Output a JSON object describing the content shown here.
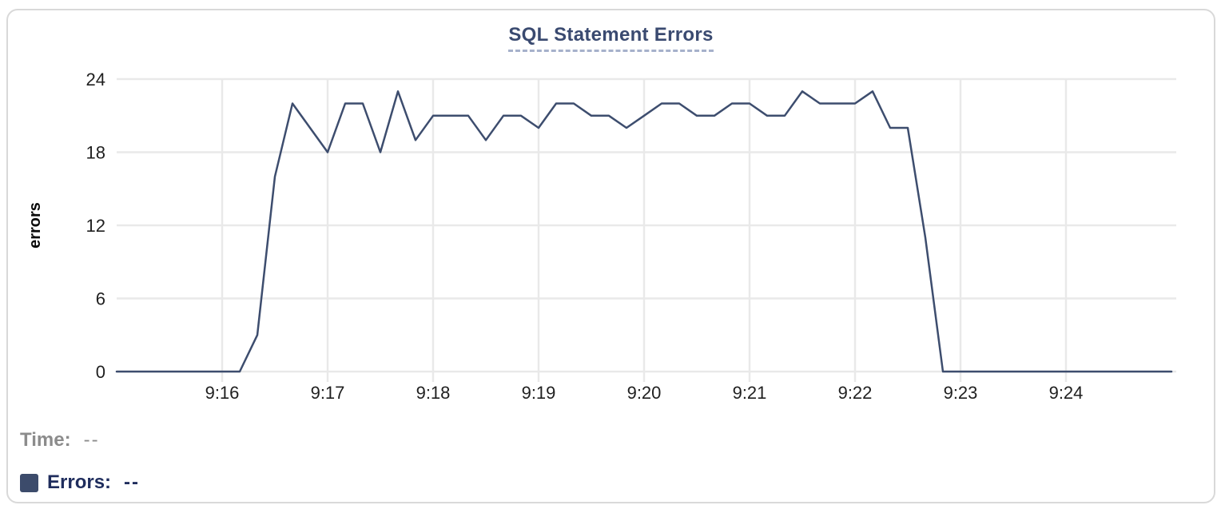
{
  "chart_data": {
    "type": "line",
    "title": "SQL Statement Errors",
    "xlabel": "",
    "ylabel": "errors",
    "x_ticks": [
      "9:16",
      "9:17",
      "9:18",
      "9:19",
      "9:20",
      "9:21",
      "9:22",
      "9:23",
      "9:24"
    ],
    "y_ticks": [
      0,
      6,
      12,
      18,
      24
    ],
    "ylim": [
      0,
      24
    ],
    "x_range": [
      "9:15:00",
      "9:25:00"
    ],
    "grid": true,
    "legend_position": "bottom-left",
    "series": [
      {
        "name": "Errors",
        "color": "#3d4d6e",
        "points": [
          [
            "9:15:00",
            0
          ],
          [
            "9:15:10",
            0
          ],
          [
            "9:15:20",
            0
          ],
          [
            "9:15:30",
            0
          ],
          [
            "9:15:40",
            0
          ],
          [
            "9:15:50",
            0
          ],
          [
            "9:16:00",
            0
          ],
          [
            "9:16:10",
            0
          ],
          [
            "9:16:20",
            3
          ],
          [
            "9:16:30",
            16
          ],
          [
            "9:16:40",
            22
          ],
          [
            "9:16:50",
            20
          ],
          [
            "9:17:00",
            18
          ],
          [
            "9:17:10",
            22
          ],
          [
            "9:17:20",
            22
          ],
          [
            "9:17:30",
            18
          ],
          [
            "9:17:40",
            23
          ],
          [
            "9:17:50",
            19
          ],
          [
            "9:18:00",
            21
          ],
          [
            "9:18:10",
            21
          ],
          [
            "9:18:20",
            21
          ],
          [
            "9:18:30",
            19
          ],
          [
            "9:18:40",
            21
          ],
          [
            "9:18:50",
            21
          ],
          [
            "9:19:00",
            20
          ],
          [
            "9:19:10",
            22
          ],
          [
            "9:19:20",
            22
          ],
          [
            "9:19:30",
            21
          ],
          [
            "9:19:40",
            21
          ],
          [
            "9:19:50",
            20
          ],
          [
            "9:20:00",
            21
          ],
          [
            "9:20:10",
            22
          ],
          [
            "9:20:20",
            22
          ],
          [
            "9:20:30",
            21
          ],
          [
            "9:20:40",
            21
          ],
          [
            "9:20:50",
            22
          ],
          [
            "9:21:00",
            22
          ],
          [
            "9:21:10",
            21
          ],
          [
            "9:21:20",
            21
          ],
          [
            "9:21:30",
            23
          ],
          [
            "9:21:40",
            22
          ],
          [
            "9:21:50",
            22
          ],
          [
            "9:22:00",
            22
          ],
          [
            "9:22:10",
            23
          ],
          [
            "9:22:20",
            20
          ],
          [
            "9:22:30",
            20
          ],
          [
            "9:22:40",
            11
          ],
          [
            "9:22:50",
            0
          ],
          [
            "9:23:00",
            0
          ],
          [
            "9:23:10",
            0
          ],
          [
            "9:23:20",
            0
          ],
          [
            "9:23:30",
            0
          ],
          [
            "9:23:40",
            0
          ],
          [
            "9:23:50",
            0
          ],
          [
            "9:24:00",
            0
          ],
          [
            "9:24:10",
            0
          ],
          [
            "9:24:20",
            0
          ],
          [
            "9:24:30",
            0
          ],
          [
            "9:24:40",
            0
          ],
          [
            "9:24:50",
            0
          ],
          [
            "9:25:00",
            0
          ]
        ]
      }
    ]
  },
  "readout": {
    "time_label": "Time:",
    "time_value": "--",
    "errors_label": "Errors:",
    "errors_value": "--"
  },
  "colors": {
    "line": "#3d4d6e",
    "swatch": "#3c4b6b",
    "title": "#3a4a70",
    "title_underline": "#a6b1cb",
    "grid": "#e9e9e9",
    "tick_text": "#1f1f1f",
    "axis_title_text": "#0a0a0a",
    "time_text": "#8c8c8c",
    "errors_text": "#1f2d5d",
    "card_border": "#d9d9d9"
  }
}
